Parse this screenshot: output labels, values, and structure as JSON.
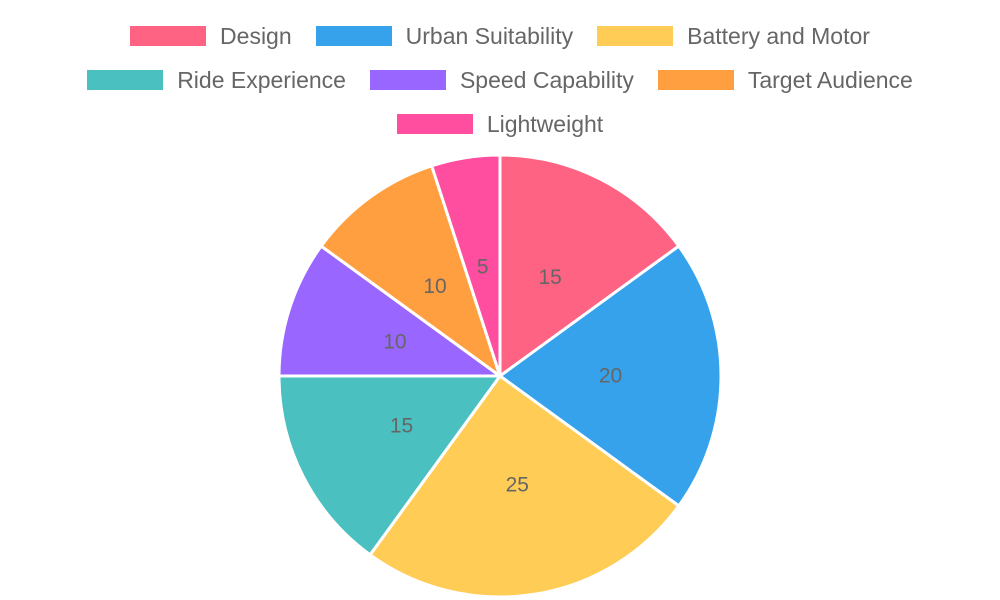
{
  "chart_data": {
    "type": "pie",
    "title": "",
    "categories": [
      "Design",
      "Urban Suitability",
      "Battery and Motor",
      "Ride Experience",
      "Speed Capability",
      "Target Audience",
      "Lightweight"
    ],
    "values": [
      15,
      20,
      25,
      15,
      10,
      10,
      5
    ],
    "colors": [
      "#ff6384",
      "#36a2eb",
      "#ffcd56",
      "#4bc0c0",
      "#9966ff",
      "#ff9f40",
      "#ff4d9f"
    ],
    "legend": {
      "position": "top",
      "rows": [
        [
          0,
          1,
          2
        ],
        [
          3,
          4,
          5
        ],
        [
          6
        ]
      ]
    },
    "data_labels": [
      "15",
      "20",
      "25",
      "15",
      "10",
      "10",
      "5"
    ]
  }
}
